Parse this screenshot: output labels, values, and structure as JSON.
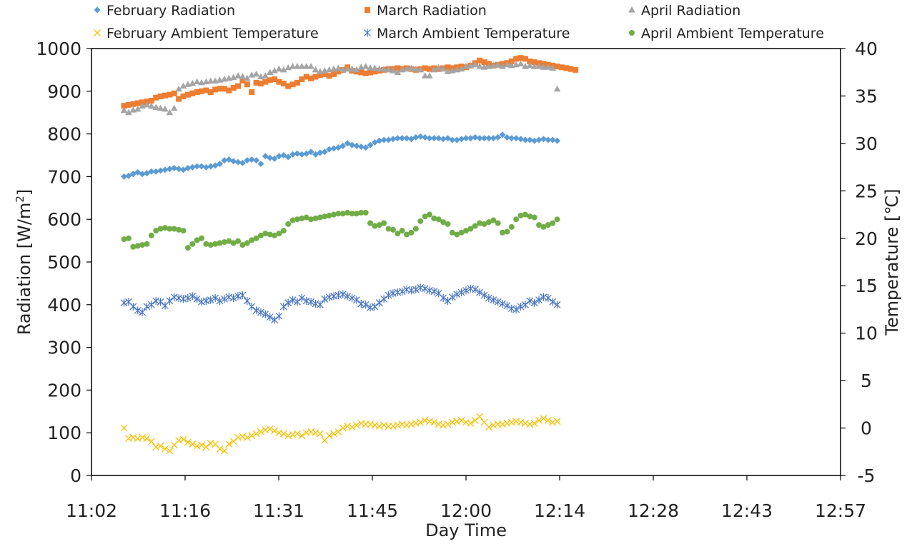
{
  "chart_data": {
    "type": "scatter",
    "title": "",
    "xlabel": "Day Time",
    "ylabel_left": "Radiation [W/m",
    "ylabel_left_sup": "2",
    "ylabel_left_end": "]",
    "ylabel_right": "Temperature [℃]",
    "x_ticks": [
      "11:02",
      "11:16",
      "11:31",
      "11:45",
      "12:00",
      "12:14",
      "12:28",
      "12:43",
      "12:57"
    ],
    "xlim_minutes": [
      662,
      777
    ],
    "y_left_ticks": [
      "0",
      "100",
      "200",
      "300",
      "400",
      "500",
      "600",
      "700",
      "800",
      "900",
      "1000"
    ],
    "y_left_lim": [
      0,
      1000
    ],
    "y_right_ticks": [
      "-5",
      "0",
      "5",
      "10",
      "15",
      "20",
      "25",
      "30",
      "35",
      "40"
    ],
    "y_right_lim": [
      -5,
      40
    ],
    "x_start_minute": 667,
    "x_step_minute": 0.7,
    "legend_position": "top",
    "series": [
      {
        "name": "February Radiation",
        "axis": "left",
        "marker": "diamond",
        "color": "#5B9BD5",
        "values": [
          700,
          702,
          706,
          710,
          706,
          708,
          712,
          712,
          714,
          716,
          718,
          720,
          718,
          716,
          720,
          722,
          724,
          724,
          722,
          724,
          726,
          730,
          738,
          740,
          736,
          734,
          732,
          738,
          740,
          738,
          730,
          748,
          744,
          742,
          748,
          750,
          746,
          752,
          754,
          752,
          754,
          758,
          752,
          756,
          758,
          764,
          766,
          768,
          772,
          778,
          774,
          772,
          770,
          768,
          774,
          780,
          784,
          786,
          786,
          788,
          790,
          790,
          790,
          788,
          792,
          794,
          792,
          790,
          790,
          790,
          788,
          790,
          786,
          786,
          788,
          790,
          790,
          792,
          790,
          790,
          790,
          790,
          792,
          798,
          792,
          790,
          790,
          788,
          786,
          786,
          784,
          786,
          788,
          786,
          786,
          784
        ]
      },
      {
        "name": "March Radiation",
        "axis": "left",
        "marker": "square",
        "color": "#ED7D31",
        "values": [
          866,
          868,
          870,
          872,
          874,
          876,
          878,
          885,
          888,
          890,
          892,
          895,
          882,
          888,
          892,
          895,
          898,
          900,
          902,
          898,
          904,
          906,
          906,
          902,
          908,
          912,
          925,
          916,
          898,
          920,
          918,
          922,
          926,
          928,
          922,
          918,
          912,
          916,
          920,
          928,
          934,
          930,
          934,
          938,
          940,
          936,
          940,
          946,
          950,
          956,
          948,
          946,
          944,
          942,
          944,
          946,
          948,
          950,
          952,
          952,
          954,
          952,
          954,
          952,
          950,
          952,
          954,
          952,
          954,
          952,
          954,
          956,
          954,
          956,
          958,
          956,
          960,
          966,
          972,
          968,
          964,
          960,
          962,
          964,
          966,
          970,
          976,
          978,
          976,
          970,
          968,
          966,
          964,
          962,
          960,
          958,
          956,
          954,
          952,
          950
        ]
      },
      {
        "name": "April Radiation",
        "axis": "left",
        "marker": "triangle",
        "color": "#A5A5A5",
        "values": [
          855,
          850,
          856,
          858,
          865,
          868,
          865,
          862,
          860,
          858,
          850,
          860,
          905,
          912,
          916,
          918,
          922,
          920,
          922,
          924,
          924,
          926,
          928,
          930,
          932,
          936,
          934,
          930,
          938,
          940,
          934,
          936,
          944,
          948,
          952,
          950,
          955,
          958,
          958,
          958,
          958,
          958,
          950,
          946,
          948,
          950,
          952,
          954,
          950,
          952,
          952,
          950,
          956,
          958,
          955,
          954,
          952,
          952,
          950,
          948,
          944,
          950,
          952,
          954,
          952,
          950,
          936,
          936,
          950,
          955,
          952,
          946,
          948,
          950,
          952,
          958,
          960,
          962,
          958,
          956,
          958,
          960,
          962,
          958,
          962,
          960,
          962,
          964,
          958,
          960,
          958,
          958,
          956,
          956,
          954,
          905
        ]
      },
      {
        "name": "February Ambient Temperature",
        "axis": "right",
        "marker": "x",
        "color": "#FFC000",
        "values": [
          0.0,
          -1.1,
          -1.0,
          -1.1,
          -1.0,
          -1.1,
          -1.4,
          -2.0,
          -1.9,
          -2.2,
          -2.4,
          -1.8,
          -1.3,
          -1.2,
          -1.5,
          -1.7,
          -1.9,
          -1.8,
          -2.0,
          -1.6,
          -1.7,
          -2.2,
          -2.4,
          -1.7,
          -1.4,
          -1.0,
          -0.9,
          -1.0,
          -0.8,
          -0.6,
          -0.4,
          -0.2,
          -0.1,
          -0.3,
          -0.5,
          -0.6,
          -0.8,
          -0.7,
          -0.6,
          -0.8,
          -0.5,
          -0.4,
          -0.5,
          -0.6,
          -1.3,
          -0.8,
          -0.6,
          -0.4,
          0.0,
          0.2,
          0.1,
          0.3,
          0.5,
          0.4,
          0.4,
          0.3,
          0.2,
          0.3,
          0.2,
          0.2,
          0.3,
          0.4,
          0.3,
          0.4,
          0.5,
          0.6,
          0.8,
          0.7,
          0.6,
          0.4,
          0.3,
          0.4,
          0.6,
          0.7,
          0.8,
          0.6,
          0.5,
          0.8,
          1.2,
          0.6,
          0.1,
          0.3,
          0.4,
          0.4,
          0.5,
          0.6,
          0.7,
          0.6,
          0.5,
          0.4,
          0.5,
          0.8,
          1.0,
          0.8,
          0.6,
          0.7
        ]
      },
      {
        "name": "March Ambient Temperature",
        "axis": "right",
        "marker": "asterisk",
        "color": "#4472C4",
        "values": [
          13.2,
          13.3,
          12.8,
          12.4,
          12.2,
          12.8,
          13.0,
          13.4,
          13.3,
          12.9,
          13.4,
          13.8,
          13.7,
          13.6,
          13.7,
          13.9,
          13.6,
          13.3,
          13.4,
          13.5,
          13.7,
          13.4,
          13.6,
          13.8,
          13.7,
          13.9,
          14.0,
          13.4,
          12.8,
          12.4,
          12.2,
          12.0,
          11.7,
          11.4,
          11.8,
          12.8,
          13.2,
          13.5,
          13.3,
          13.7,
          13.4,
          13.3,
          13.1,
          13.0,
          13.6,
          13.8,
          13.9,
          14.0,
          14.1,
          13.9,
          13.7,
          13.5,
          13.1,
          13.0,
          12.7,
          12.8,
          13.2,
          13.6,
          14.0,
          14.2,
          14.3,
          14.4,
          14.6,
          14.5,
          14.6,
          14.8,
          14.7,
          14.5,
          14.4,
          14.2,
          13.7,
          13.4,
          13.8,
          14.1,
          14.3,
          14.5,
          14.7,
          14.6,
          14.3,
          14.0,
          13.7,
          13.5,
          13.3,
          13.1,
          12.9,
          12.6,
          12.5,
          12.8,
          13.0,
          13.4,
          13.2,
          13.5,
          13.8,
          13.7,
          13.3,
          13.0
        ]
      },
      {
        "name": "April Ambient Temperature",
        "axis": "right",
        "marker": "circle",
        "color": "#70AD47",
        "values": [
          19.9,
          20.0,
          19.1,
          19.2,
          19.3,
          19.4,
          20.3,
          20.8,
          21.0,
          21.1,
          21.0,
          21.0,
          20.9,
          20.8,
          19.0,
          19.4,
          19.8,
          20.0,
          19.4,
          19.3,
          19.4,
          19.5,
          19.6,
          19.7,
          19.5,
          19.7,
          19.3,
          19.5,
          19.8,
          20.0,
          20.3,
          20.5,
          20.4,
          20.3,
          20.5,
          20.8,
          21.5,
          21.9,
          22.0,
          22.1,
          22.2,
          22.0,
          22.1,
          22.2,
          22.3,
          22.4,
          22.5,
          22.6,
          22.6,
          22.7,
          22.6,
          22.6,
          22.7,
          22.7,
          21.6,
          21.3,
          21.4,
          21.6,
          21.0,
          20.9,
          20.5,
          20.8,
          20.4,
          20.6,
          21.0,
          21.8,
          22.3,
          22.5,
          22.1,
          22.0,
          21.7,
          21.5,
          20.6,
          20.4,
          20.6,
          20.8,
          21.0,
          21.3,
          21.6,
          21.5,
          21.7,
          21.9,
          21.6,
          20.6,
          20.7,
          21.2,
          22.0,
          22.4,
          22.5,
          22.3,
          22.2,
          21.4,
          21.2,
          21.4,
          21.6,
          22.0
        ]
      }
    ]
  }
}
